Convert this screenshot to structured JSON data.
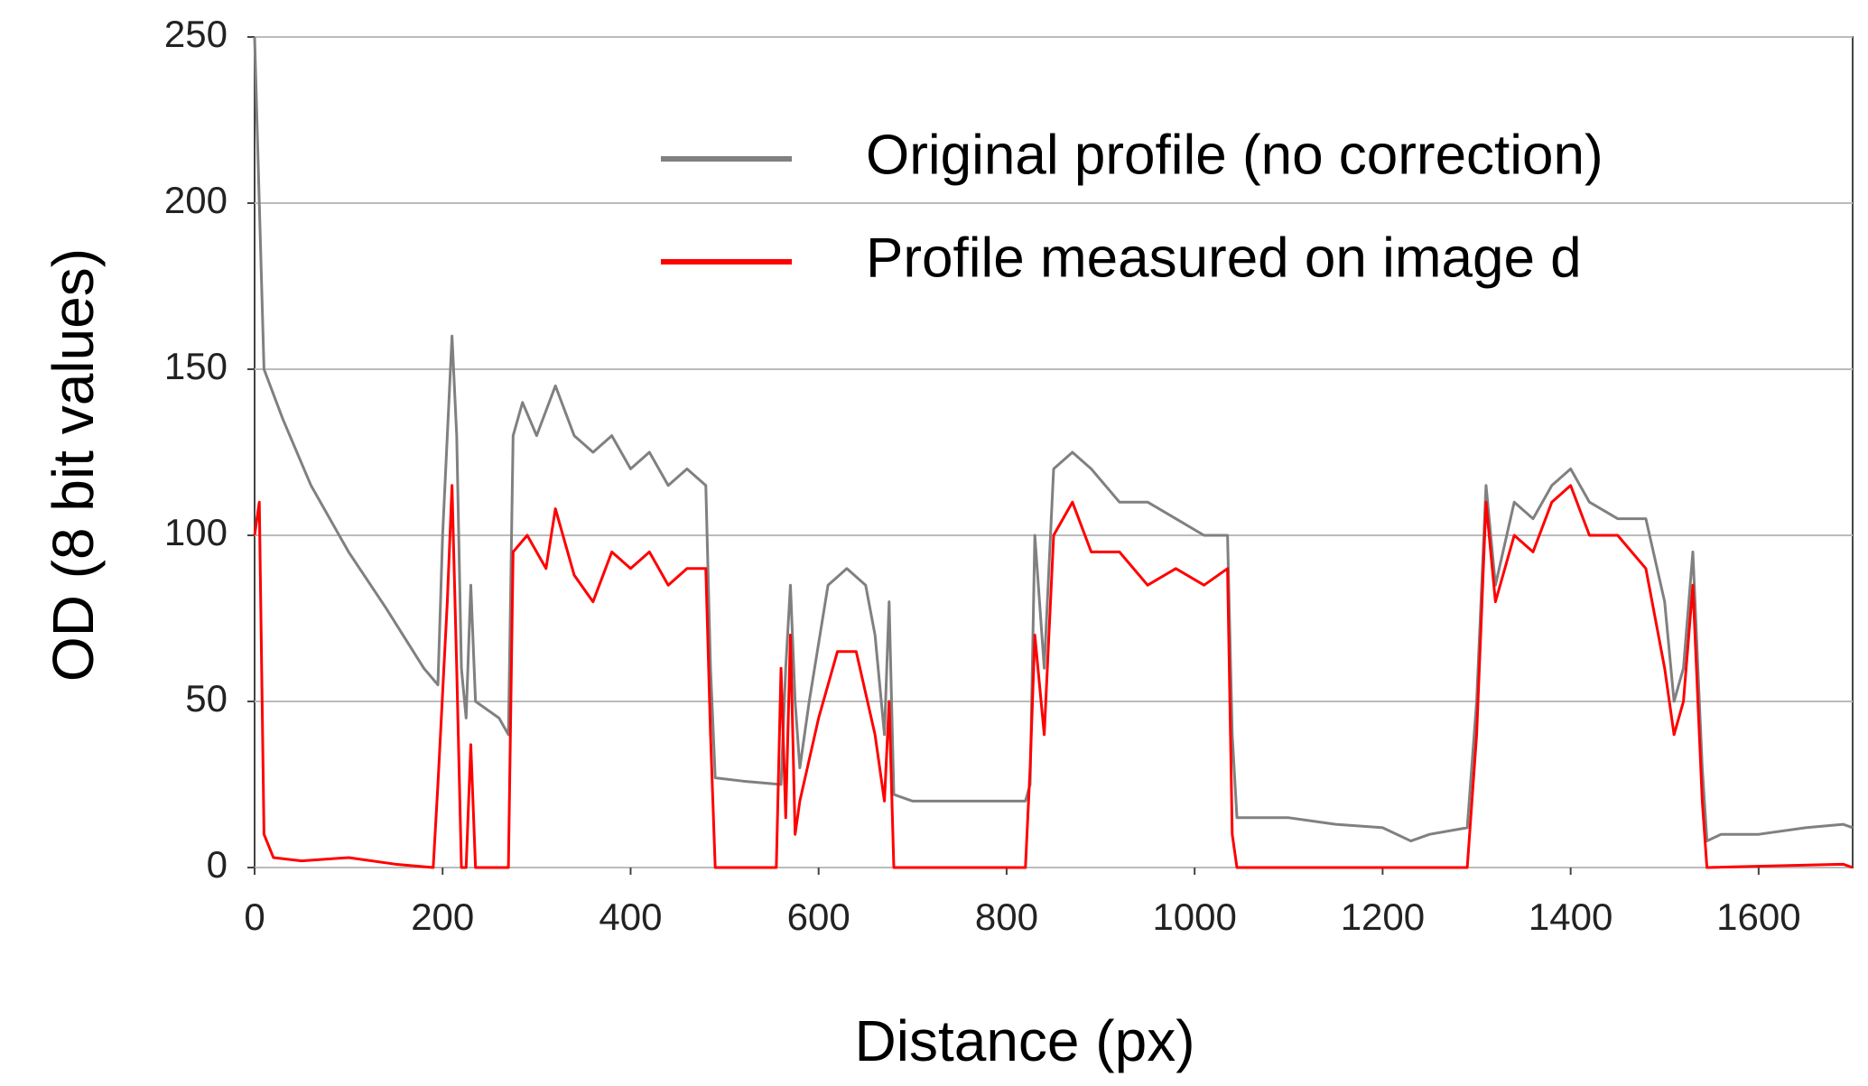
{
  "chart_data": {
    "type": "line",
    "xlabel": "Distance (px)",
    "ylabel": "OD (8 bit values)",
    "xlim": [
      0,
      1700
    ],
    "ylim": [
      0,
      250
    ],
    "xticks": [
      0,
      200,
      400,
      600,
      800,
      1000,
      1200,
      1400,
      1600
    ],
    "yticks": [
      0,
      50,
      100,
      150,
      200,
      250
    ],
    "grid": true,
    "legend": "upper right",
    "series": [
      {
        "name": "Original profile (no correction)",
        "color": "#808080",
        "x": [
          0,
          5,
          10,
          30,
          60,
          100,
          140,
          180,
          195,
          200,
          210,
          215,
          220,
          225,
          230,
          235,
          260,
          270,
          275,
          285,
          300,
          320,
          340,
          360,
          380,
          400,
          420,
          440,
          460,
          480,
          485,
          490,
          520,
          560,
          565,
          570,
          575,
          580,
          590,
          610,
          630,
          650,
          660,
          670,
          675,
          680,
          700,
          760,
          820,
          825,
          830,
          840,
          850,
          870,
          890,
          920,
          950,
          980,
          1010,
          1035,
          1040,
          1045,
          1100,
          1150,
          1200,
          1230,
          1250,
          1290,
          1300,
          1310,
          1320,
          1340,
          1360,
          1380,
          1400,
          1420,
          1450,
          1480,
          1500,
          1510,
          1520,
          1530,
          1540,
          1545,
          1560,
          1600,
          1650,
          1690,
          1700
        ],
        "values": [
          250,
          200,
          150,
          135,
          115,
          95,
          78,
          60,
          55,
          100,
          160,
          130,
          60,
          45,
          85,
          50,
          45,
          40,
          130,
          140,
          130,
          145,
          130,
          125,
          130,
          120,
          125,
          115,
          120,
          115,
          60,
          27,
          26,
          25,
          60,
          85,
          50,
          30,
          50,
          85,
          90,
          85,
          70,
          40,
          80,
          22,
          20,
          20,
          20,
          25,
          100,
          60,
          120,
          125,
          120,
          110,
          110,
          105,
          100,
          100,
          40,
          15,
          15,
          13,
          12,
          8,
          10,
          12,
          50,
          115,
          85,
          110,
          105,
          115,
          120,
          110,
          105,
          105,
          80,
          50,
          60,
          95,
          30,
          8,
          10,
          10,
          12,
          13,
          12
        ]
      },
      {
        "name": "Profile measured on image d",
        "color": "#ff0000",
        "x": [
          0,
          5,
          10,
          20,
          50,
          100,
          150,
          190,
          195,
          205,
          210,
          215,
          220,
          225,
          230,
          235,
          270,
          275,
          290,
          310,
          320,
          340,
          360,
          380,
          400,
          420,
          440,
          460,
          480,
          485,
          490,
          555,
          560,
          565,
          570,
          575,
          580,
          600,
          620,
          640,
          660,
          670,
          675,
          680,
          820,
          825,
          830,
          840,
          850,
          870,
          890,
          920,
          950,
          980,
          1010,
          1035,
          1040,
          1045,
          1290,
          1300,
          1310,
          1320,
          1340,
          1360,
          1380,
          1400,
          1420,
          1450,
          1480,
          1500,
          1510,
          1520,
          1530,
          1540,
          1545,
          1690,
          1700
        ],
        "values": [
          100,
          110,
          10,
          3,
          2,
          3,
          1,
          0,
          25,
          80,
          115,
          60,
          0,
          0,
          37,
          0,
          0,
          95,
          100,
          90,
          108,
          88,
          80,
          95,
          90,
          95,
          85,
          90,
          90,
          40,
          0,
          0,
          60,
          15,
          70,
          10,
          20,
          45,
          65,
          65,
          40,
          20,
          50,
          0,
          0,
          30,
          70,
          40,
          100,
          110,
          95,
          95,
          85,
          90,
          85,
          90,
          10,
          0,
          0,
          40,
          110,
          80,
          100,
          95,
          110,
          115,
          100,
          100,
          90,
          60,
          40,
          50,
          85,
          20,
          0,
          1,
          0
        ]
      }
    ]
  }
}
